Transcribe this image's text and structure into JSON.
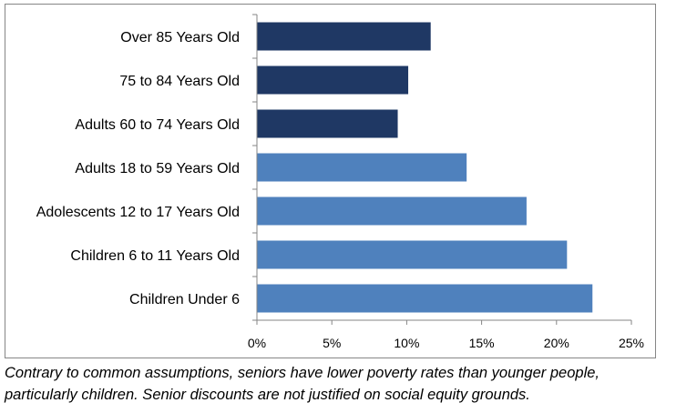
{
  "chart_data": {
    "type": "bar",
    "orientation": "horizontal",
    "title": "",
    "xlabel": "",
    "ylabel": "",
    "categories": [
      "Over 85 Years Old",
      "75 to 84 Years Old",
      "Adults 60 to 74 Years Old",
      "Adults 18 to 59 Years Old",
      "Adolescents 12 to 17 Years Old",
      "Children 6 to 11 Years Old",
      "Children Under 6"
    ],
    "values": [
      11.6,
      10.1,
      9.4,
      14.0,
      18.0,
      20.7,
      22.4
    ],
    "bar_colors": [
      "#1f3864",
      "#1f3864",
      "#1f3864",
      "#4f81bd",
      "#4f81bd",
      "#4f81bd",
      "#4f81bd"
    ],
    "xlim": [
      0,
      25
    ],
    "xticks": [
      "0%",
      "5%",
      "10%",
      "15%",
      "20%",
      "25%"
    ],
    "grid": false,
    "legend": "none"
  },
  "caption": {
    "line1": "Contrary to common assumptions, seniors have lower poverty rates than younger people,",
    "line2": "particularly children. Senior discounts are not justified on social equity grounds."
  },
  "colors": {
    "frame": "#868686",
    "axis": "#868686"
  }
}
